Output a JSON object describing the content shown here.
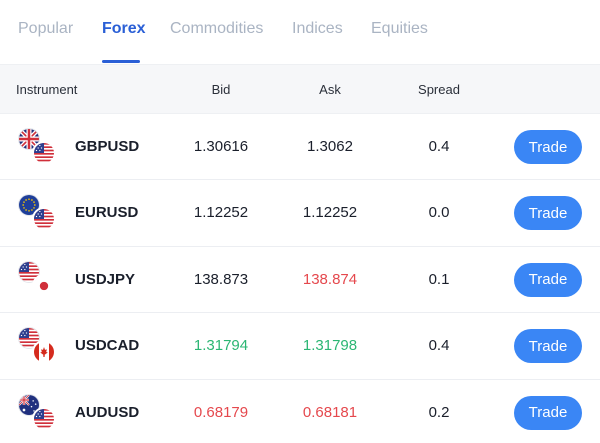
{
  "tabs": [
    {
      "label": "Popular",
      "active": false
    },
    {
      "label": "Forex",
      "active": true
    },
    {
      "label": "Commodities",
      "active": false
    },
    {
      "label": "Indices",
      "active": false
    },
    {
      "label": "Equities",
      "active": false
    }
  ],
  "table": {
    "headers": {
      "instrument": "Instrument",
      "bid": "Bid",
      "ask": "Ask",
      "spread": "Spread"
    },
    "rows": [
      {
        "instrument": "GBPUSD",
        "bid": "1.30616",
        "bid_trend": "neutral",
        "ask": "1.3062",
        "ask_trend": "neutral",
        "spread": "0.4",
        "trade_label": "Trade",
        "base_flag": "uk-flag-icon",
        "quote_flag": "us-flag-icon"
      },
      {
        "instrument": "EURUSD",
        "bid": "1.12252",
        "bid_trend": "neutral",
        "ask": "1.12252",
        "ask_trend": "neutral",
        "spread": "0.0",
        "trade_label": "Trade",
        "base_flag": "eu-flag-icon",
        "quote_flag": "us-flag-icon"
      },
      {
        "instrument": "USDJPY",
        "bid": "138.873",
        "bid_trend": "neutral",
        "ask": "138.874",
        "ask_trend": "down",
        "spread": "0.1",
        "trade_label": "Trade",
        "base_flag": "us-flag-icon",
        "quote_flag": "jp-flag-icon"
      },
      {
        "instrument": "USDCAD",
        "bid": "1.31794",
        "bid_trend": "up",
        "ask": "1.31798",
        "ask_trend": "up",
        "spread": "0.4",
        "trade_label": "Trade",
        "base_flag": "us-flag-icon",
        "quote_flag": "ca-flag-icon"
      },
      {
        "instrument": "AUDUSD",
        "bid": "0.68179",
        "bid_trend": "down",
        "ask": "0.68181",
        "ask_trend": "down",
        "spread": "0.2",
        "trade_label": "Trade",
        "base_flag": "au-flag-icon",
        "quote_flag": "us-flag-icon"
      }
    ]
  },
  "colors": {
    "accent": "#2a5fd6",
    "button": "#3a86f5",
    "up": "#2bb673",
    "down": "#e5484d",
    "tab_inactive": "#aab4c3"
  }
}
